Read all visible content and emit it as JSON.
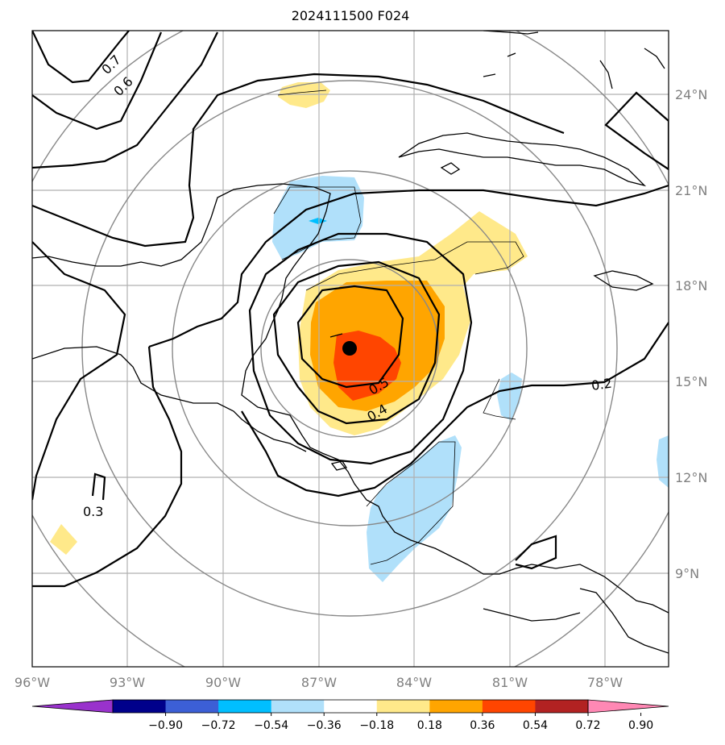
{
  "title": "2024111500 F024",
  "lon_labels": [
    "96°W",
    "93°W",
    "90°W",
    "87°W",
    "84°W",
    "81°W",
    "78°W"
  ],
  "lat_labels": [
    "24°N",
    "21°N",
    "18°N",
    "15°N",
    "12°N",
    "9°N"
  ],
  "contour_labels": [
    "0.7",
    "0.6",
    "0.5",
    "0.4",
    "0.3",
    "0.2"
  ],
  "colorbar": {
    "ticks": [
      "−0.90",
      "−0.72",
      "−0.54",
      "−0.36",
      "−0.18",
      "0.18",
      "0.36",
      "0.54",
      "0.72",
      "0.90"
    ],
    "colors": [
      "#9932cc",
      "#00008b",
      "#3c5fd6",
      "#00bfff",
      "#b0e0fa",
      "#ffffff",
      "#ffe98a",
      "#ffa500",
      "#ff4500",
      "#b22222",
      "#ff88b4"
    ]
  }
}
